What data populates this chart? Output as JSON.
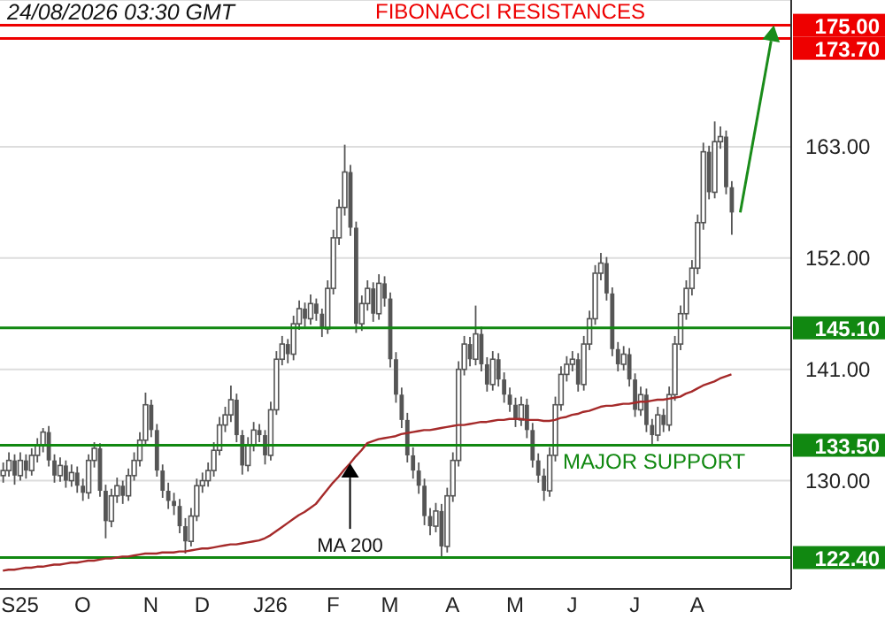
{
  "chart_data": {
    "type": "candlestick",
    "categories": [
      null,
      null,
      null,
      "S25",
      null,
      null,
      null,
      null,
      null,
      null,
      null,
      null,
      null,
      null,
      "O",
      null,
      null,
      null,
      null,
      null,
      null,
      null,
      null,
      null,
      null,
      null,
      "N",
      null,
      null,
      null,
      null,
      null,
      null,
      null,
      null,
      "D",
      null,
      null,
      null,
      null,
      null,
      null,
      null,
      null,
      null,
      null,
      null,
      "J26",
      null,
      null,
      null,
      null,
      null,
      null,
      null,
      null,
      null,
      null,
      "F",
      null,
      null,
      null,
      null,
      null,
      null,
      null,
      null,
      null,
      "M",
      null,
      null,
      null,
      null,
      null,
      null,
      null,
      null,
      null,
      null,
      "A",
      null,
      null,
      null,
      null,
      null,
      null,
      null,
      null,
      null,
      null,
      "M",
      null,
      null,
      null,
      null,
      null,
      null,
      null,
      null,
      null,
      "J",
      null,
      null,
      null,
      null,
      null,
      null,
      null,
      null,
      null,
      null,
      "J",
      null,
      null,
      null,
      null,
      null,
      null,
      null,
      null,
      null,
      null,
      "A",
      null,
      null,
      null,
      null,
      null,
      null,
      null,
      null,
      null,
      null,
      null,
      null,
      null,
      null,
      null,
      null
    ],
    "series": [
      {
        "type": "candlestick",
        "color": "#555555",
        "ohlc": [
          [
            130.5,
            131.8,
            129.8,
            131.0
          ],
          [
            131.0,
            132.8,
            130.4,
            132.0
          ],
          [
            132.0,
            132.6,
            129.6,
            130.5
          ],
          [
            130.5,
            132.8,
            130.0,
            132.0
          ],
          [
            132.0,
            132.6,
            130.2,
            131.0
          ],
          [
            131.0,
            133.2,
            130.5,
            132.5
          ],
          [
            132.5,
            134.2,
            131.8,
            133.5
          ],
          [
            133.5,
            135.2,
            132.8,
            134.8
          ],
          [
            134.8,
            135.4,
            131.4,
            132.0
          ],
          [
            132.0,
            132.6,
            129.8,
            130.5
          ],
          [
            130.5,
            132.3,
            129.9,
            131.5
          ],
          [
            131.5,
            132.0,
            129.3,
            130.0
          ],
          [
            130.0,
            131.6,
            129.4,
            130.8
          ],
          [
            130.8,
            131.4,
            128.8,
            129.5
          ],
          [
            129.5,
            130.2,
            128.0,
            128.8
          ],
          [
            128.8,
            132.6,
            128.2,
            132.0
          ],
          [
            132.0,
            133.8,
            131.3,
            133.2
          ],
          [
            133.2,
            133.7,
            128.4,
            129.0
          ],
          [
            129.0,
            129.6,
            124.3,
            126.0
          ],
          [
            126.0,
            129.2,
            125.4,
            128.5
          ],
          [
            128.5,
            130.3,
            127.8,
            129.5
          ],
          [
            129.5,
            130.0,
            127.7,
            128.5
          ],
          [
            128.5,
            131.2,
            128.0,
            130.5
          ],
          [
            130.5,
            132.8,
            130.0,
            132.0
          ],
          [
            132.0,
            134.8,
            131.4,
            134.0
          ],
          [
            134.0,
            138.7,
            133.5,
            137.5
          ],
          [
            137.5,
            138.0,
            134.3,
            135.0
          ],
          [
            135.0,
            135.6,
            130.4,
            131.0
          ],
          [
            131.0,
            131.6,
            128.3,
            129.0
          ],
          [
            129.0,
            129.8,
            127.2,
            128.0
          ],
          [
            128.0,
            128.8,
            126.6,
            127.5
          ],
          [
            127.5,
            128.2,
            124.8,
            125.5
          ],
          [
            125.5,
            126.3,
            122.8,
            124.0
          ],
          [
            124.0,
            127.3,
            123.5,
            126.5
          ],
          [
            126.5,
            130.2,
            126.0,
            129.5
          ],
          [
            129.5,
            130.8,
            128.8,
            130.0
          ],
          [
            130.0,
            131.8,
            129.4,
            131.0
          ],
          [
            131.0,
            133.8,
            130.4,
            133.0
          ],
          [
            133.0,
            136.3,
            132.5,
            135.5
          ],
          [
            135.5,
            137.3,
            134.8,
            136.5
          ],
          [
            136.5,
            139.4,
            135.8,
            138.0
          ],
          [
            138.0,
            138.6,
            133.8,
            134.5
          ],
          [
            134.5,
            135.0,
            130.6,
            131.5
          ],
          [
            131.5,
            134.3,
            130.9,
            133.5
          ],
          [
            133.5,
            135.8,
            132.9,
            135.0
          ],
          [
            135.0,
            135.6,
            133.8,
            134.5
          ],
          [
            134.5,
            135.0,
            131.6,
            132.5
          ],
          [
            132.5,
            137.8,
            132.0,
            137.0
          ],
          [
            137.0,
            142.8,
            136.5,
            142.0
          ],
          [
            142.0,
            144.3,
            141.4,
            143.5
          ],
          [
            143.5,
            144.0,
            141.6,
            142.5
          ],
          [
            142.5,
            146.3,
            141.9,
            145.5
          ],
          [
            145.5,
            147.8,
            144.9,
            147.0
          ],
          [
            147.0,
            147.6,
            145.2,
            146.0
          ],
          [
            146.0,
            148.4,
            145.4,
            147.5
          ],
          [
            147.5,
            148.0,
            145.8,
            146.5
          ],
          [
            146.5,
            147.0,
            144.2,
            145.0
          ],
          [
            145.0,
            149.8,
            144.5,
            149.0
          ],
          [
            149.0,
            154.8,
            148.4,
            154.0
          ],
          [
            154.0,
            157.8,
            153.3,
            157.0
          ],
          [
            157.0,
            163.2,
            156.2,
            160.5
          ],
          [
            160.5,
            161.2,
            154.2,
            155.0
          ],
          [
            155.0,
            155.6,
            144.6,
            145.5
          ],
          [
            145.5,
            148.3,
            144.8,
            147.5
          ],
          [
            147.5,
            149.8,
            146.8,
            149.0
          ],
          [
            149.0,
            149.6,
            145.7,
            146.5
          ],
          [
            146.5,
            150.4,
            145.9,
            149.5
          ],
          [
            149.5,
            150.2,
            147.2,
            148.0
          ],
          [
            148.0,
            148.6,
            141.2,
            142.0
          ],
          [
            142.0,
            142.7,
            137.7,
            138.5
          ],
          [
            138.5,
            139.2,
            135.2,
            136.0
          ],
          [
            136.0,
            136.7,
            131.8,
            132.5
          ],
          [
            132.5,
            133.3,
            130.2,
            131.0
          ],
          [
            131.0,
            131.8,
            128.7,
            129.5
          ],
          [
            129.5,
            130.2,
            125.6,
            126.5
          ],
          [
            126.5,
            127.3,
            124.6,
            125.5
          ],
          [
            125.5,
            127.8,
            124.9,
            127.0
          ],
          [
            127.0,
            127.7,
            122.5,
            123.5
          ],
          [
            123.5,
            129.3,
            122.9,
            128.5
          ],
          [
            128.5,
            132.8,
            127.9,
            132.0
          ],
          [
            132.0,
            141.8,
            131.4,
            141.0
          ],
          [
            141.0,
            144.3,
            140.4,
            143.5
          ],
          [
            143.5,
            144.2,
            141.3,
            142.0
          ],
          [
            142.0,
            147.3,
            141.4,
            144.5
          ],
          [
            144.5,
            145.2,
            140.8,
            141.5
          ],
          [
            141.5,
            142.2,
            138.8,
            139.5
          ],
          [
            139.5,
            142.8,
            138.9,
            142.0
          ],
          [
            142.0,
            142.6,
            139.3,
            140.0
          ],
          [
            140.0,
            140.7,
            137.7,
            138.5
          ],
          [
            138.5,
            139.2,
            136.8,
            137.5
          ],
          [
            137.5,
            138.2,
            135.3,
            136.0
          ],
          [
            136.0,
            138.3,
            135.4,
            137.5
          ],
          [
            137.5,
            138.1,
            134.2,
            135.0
          ],
          [
            135.0,
            135.7,
            131.3,
            132.0
          ],
          [
            132.0,
            132.7,
            129.8,
            130.5
          ],
          [
            130.5,
            131.2,
            128.0,
            129.0
          ],
          [
            129.0,
            133.3,
            128.4,
            132.5
          ],
          [
            132.5,
            138.3,
            131.9,
            137.5
          ],
          [
            137.5,
            141.3,
            136.9,
            140.5
          ],
          [
            140.5,
            142.3,
            139.8,
            141.5
          ],
          [
            141.5,
            142.8,
            140.8,
            142.0
          ],
          [
            142.0,
            142.6,
            138.8,
            139.5
          ],
          [
            139.5,
            144.3,
            138.9,
            143.5
          ],
          [
            143.5,
            146.8,
            142.9,
            146.0
          ],
          [
            146.0,
            151.3,
            145.4,
            150.5
          ],
          [
            150.5,
            152.5,
            149.8,
            151.5
          ],
          [
            151.5,
            152.1,
            147.8,
            148.5
          ],
          [
            148.5,
            149.1,
            142.3,
            143.0
          ],
          [
            143.0,
            143.7,
            140.8,
            141.5
          ],
          [
            141.5,
            143.3,
            140.9,
            142.5
          ],
          [
            142.5,
            143.1,
            139.3,
            140.0
          ],
          [
            140.0,
            140.6,
            136.3,
            137.0
          ],
          [
            137.0,
            139.3,
            136.4,
            138.5
          ],
          [
            138.5,
            139.1,
            134.8,
            135.5
          ],
          [
            135.5,
            136.1,
            133.5,
            134.5
          ],
          [
            134.5,
            137.3,
            133.9,
            136.5
          ],
          [
            136.5,
            137.1,
            134.8,
            135.5
          ],
          [
            135.5,
            139.3,
            134.9,
            138.5
          ],
          [
            138.5,
            144.3,
            137.9,
            143.5
          ],
          [
            143.5,
            147.3,
            142.9,
            146.5
          ],
          [
            146.5,
            149.8,
            145.9,
            149.0
          ],
          [
            149.0,
            151.8,
            148.3,
            151.0
          ],
          [
            151.0,
            156.3,
            150.4,
            155.5
          ],
          [
            155.5,
            163.4,
            154.8,
            162.5
          ],
          [
            162.5,
            163.1,
            157.8,
            158.5
          ],
          [
            158.5,
            165.5,
            157.9,
            163.5
          ],
          [
            163.5,
            165.0,
            162.8,
            164.0
          ],
          [
            164.0,
            164.6,
            158.3,
            159.0
          ],
          [
            159.0,
            159.6,
            154.3,
            156.5
          ],
          null,
          null,
          null,
          null,
          null,
          null,
          null,
          null,
          null,
          null
        ]
      },
      {
        "type": "line",
        "name": "MA 200",
        "color": "#a52a2a",
        "values": [
          121.1,
          121.2,
          121.2,
          121.3,
          121.4,
          121.4,
          121.5,
          121.5,
          121.6,
          121.7,
          121.7,
          121.8,
          121.9,
          121.9,
          122.0,
          122.1,
          122.1,
          122.2,
          122.3,
          122.3,
          122.4,
          122.5,
          122.5,
          122.6,
          122.7,
          122.8,
          122.8,
          122.8,
          122.9,
          122.9,
          122.9,
          123.0,
          123.0,
          123.1,
          123.2,
          123.3,
          123.3,
          123.4,
          123.5,
          123.6,
          123.7,
          123.7,
          123.8,
          123.9,
          124.0,
          124.1,
          124.3,
          124.6,
          125.0,
          125.4,
          125.8,
          126.2,
          126.6,
          126.9,
          127.3,
          127.7,
          128.4,
          129.1,
          129.8,
          130.4,
          131.1,
          131.7,
          132.4,
          133.0,
          133.7,
          133.9,
          134.1,
          134.2,
          134.3,
          134.4,
          134.6,
          134.7,
          134.8,
          134.9,
          135.0,
          135.0,
          135.1,
          135.2,
          135.3,
          135.4,
          135.5,
          135.5,
          135.6,
          135.7,
          135.8,
          135.8,
          135.9,
          136.0,
          136.0,
          136.1,
          136.1,
          136.1,
          136.0,
          136.0,
          136.0,
          135.9,
          135.9,
          136.0,
          136.2,
          136.3,
          136.5,
          136.6,
          136.8,
          136.9,
          137.1,
          137.3,
          137.4,
          137.4,
          137.5,
          137.6,
          137.6,
          137.7,
          137.8,
          137.8,
          137.9,
          138.0,
          138.0,
          138.1,
          138.2,
          138.3,
          138.6,
          138.8,
          139.1,
          139.4,
          139.6,
          139.8,
          140.1,
          140.3,
          140.5,
          null,
          null,
          null,
          null,
          null,
          null,
          null,
          null,
          null,
          null
        ]
      }
    ],
    "ylim": [
      119.3,
      177.5
    ],
    "yticks": [
      {
        "value": 130,
        "label": "130.00"
      },
      {
        "value": 141,
        "label": "141.00"
      },
      {
        "value": 152,
        "label": "152.00"
      },
      {
        "value": 163,
        "label": "163.00"
      }
    ],
    "grid": "y",
    "ref_lines": [
      {
        "axis": "y",
        "value": 175,
        "label": "175.00",
        "color": "#ee0000"
      },
      {
        "axis": "y",
        "value": 173.7,
        "label": "173.70",
        "color": "#ee0000"
      },
      {
        "axis": "y",
        "value": 145.1,
        "label": "145.10",
        "color": "#118811"
      },
      {
        "axis": "y",
        "value": 133.5,
        "label": "133.50",
        "color": "#118811"
      },
      {
        "axis": "y",
        "value": 122.4,
        "label": "122.40",
        "color": "#118811"
      }
    ],
    "annotations": [
      "24/08/2026 03:30 GMT",
      {
        "text": "FIBONACCI RESISTANCES",
        "y": 175
      },
      {
        "text": "MAJOR SUPPORT",
        "y": 133.5
      }
    ]
  }
}
